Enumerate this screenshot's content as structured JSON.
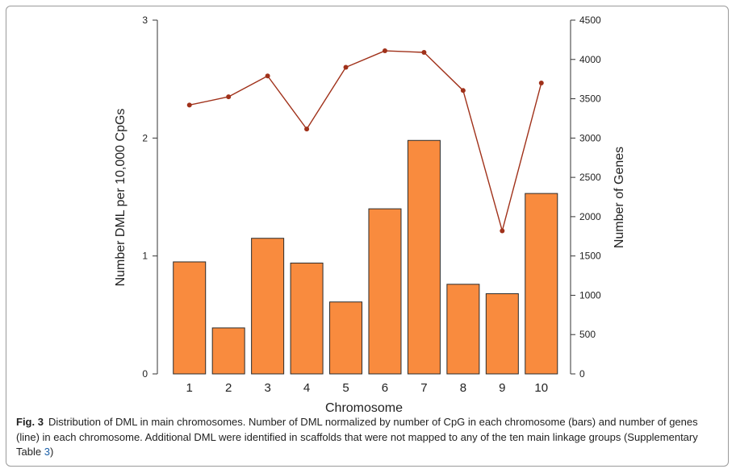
{
  "chart_data": {
    "type": "bar",
    "categories": [
      "1",
      "2",
      "3",
      "4",
      "5",
      "6",
      "7",
      "8",
      "9",
      "10"
    ],
    "series": [
      {
        "type": "bar",
        "axis": "left",
        "values": [
          0.95,
          0.39,
          1.15,
          0.94,
          0.61,
          1.4,
          1.98,
          0.76,
          0.68,
          1.53
        ],
        "color": "#F98B3E"
      },
      {
        "type": "line",
        "axis": "right",
        "values": [
          3420,
          3525,
          3790,
          3115,
          3900,
          4110,
          4090,
          3605,
          1820,
          3700
        ],
        "color": "#A0311A"
      }
    ],
    "xlabel": "Chromosome",
    "ylabel": "Number DML per 10,000 CpGs",
    "y2label": "Number of Genes",
    "ylim": [
      0,
      3
    ],
    "y2lim": [
      0,
      4500
    ],
    "yticks": [
      "0",
      "1",
      "2",
      "3"
    ],
    "y2ticks": [
      "0",
      "500",
      "1000",
      "1500",
      "2000",
      "2500",
      "3000",
      "3500",
      "4000",
      "4500"
    ],
    "grid": false
  },
  "caption": {
    "fig_label": "Fig. 3",
    "text_before_link": "Distribution of DML in main chromosomes. Number of DML normalized by number of CpG in each chromosome (bars) and number of genes (line) in each chromosome. Additional DML were identified in scaffolds that were not mapped to any of the ten main linkage groups (Supplementary Table ",
    "link_text": "3",
    "text_after_link": ")"
  }
}
